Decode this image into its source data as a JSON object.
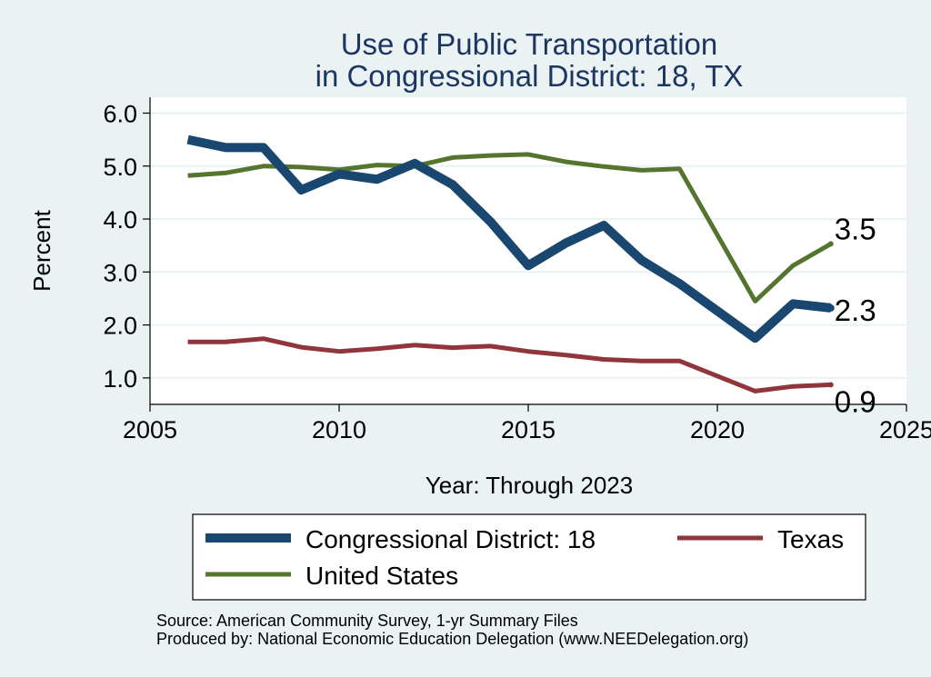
{
  "chart_data": {
    "type": "line",
    "title": [
      "Use of Public Transportation",
      "in Congressional District: 18, TX"
    ],
    "xlabel": "Year: Through 2023",
    "ylabel": "Percent",
    "xlim": [
      2005,
      2025
    ],
    "ylim": [
      0.5,
      6.3
    ],
    "x_ticks": [
      2005,
      2010,
      2015,
      2020,
      2025
    ],
    "y_ticks": [
      {
        "value": 1.0,
        "label": "1.0"
      },
      {
        "value": 2.0,
        "label": "2.0"
      },
      {
        "value": 3.0,
        "label": "3.0"
      },
      {
        "value": 4.0,
        "label": "4.0"
      },
      {
        "value": 5.0,
        "label": "5.0"
      },
      {
        "value": 6.0,
        "label": "6.0"
      }
    ],
    "grid": "horizontal",
    "legend_position": "bottom",
    "series": [
      {
        "name": "Congressional District: 18",
        "color": "#1a476f",
        "width": 10,
        "x": [
          2006,
          2007,
          2008,
          2009,
          2010,
          2011,
          2012,
          2013,
          2014,
          2015,
          2016,
          2017,
          2018,
          2019,
          2021,
          2022,
          2023
        ],
        "y": [
          5.5,
          5.35,
          5.35,
          4.55,
          4.85,
          4.75,
          5.05,
          4.65,
          3.95,
          3.12,
          3.55,
          3.88,
          3.22,
          2.78,
          1.75,
          2.4,
          2.32
        ],
        "end_label": "2.3"
      },
      {
        "name": "Texas",
        "color": "#90353b",
        "width": 5,
        "x": [
          2006,
          2007,
          2008,
          2009,
          2010,
          2011,
          2012,
          2013,
          2014,
          2015,
          2016,
          2017,
          2018,
          2019,
          2021,
          2022,
          2023
        ],
        "y": [
          1.68,
          1.68,
          1.74,
          1.58,
          1.5,
          1.55,
          1.62,
          1.57,
          1.6,
          1.5,
          1.43,
          1.35,
          1.32,
          1.32,
          0.75,
          0.84,
          0.87
        ],
        "end_label": "0.9"
      },
      {
        "name": "United States",
        "color": "#55752f",
        "width": 5,
        "x": [
          2006,
          2007,
          2008,
          2009,
          2010,
          2011,
          2012,
          2013,
          2014,
          2015,
          2016,
          2017,
          2018,
          2019,
          2021,
          2022,
          2023
        ],
        "y": [
          4.82,
          4.87,
          5.0,
          4.98,
          4.93,
          5.02,
          5.0,
          5.16,
          5.2,
          5.22,
          5.08,
          4.99,
          4.92,
          4.95,
          2.45,
          3.12,
          3.53
        ],
        "end_label": "3.5"
      }
    ],
    "source_lines": [
      "Source: American Community Survey, 1-yr Summary Files",
      "Produced by: National Economic Education Delegation (www.NEEDelegation.org)"
    ]
  }
}
